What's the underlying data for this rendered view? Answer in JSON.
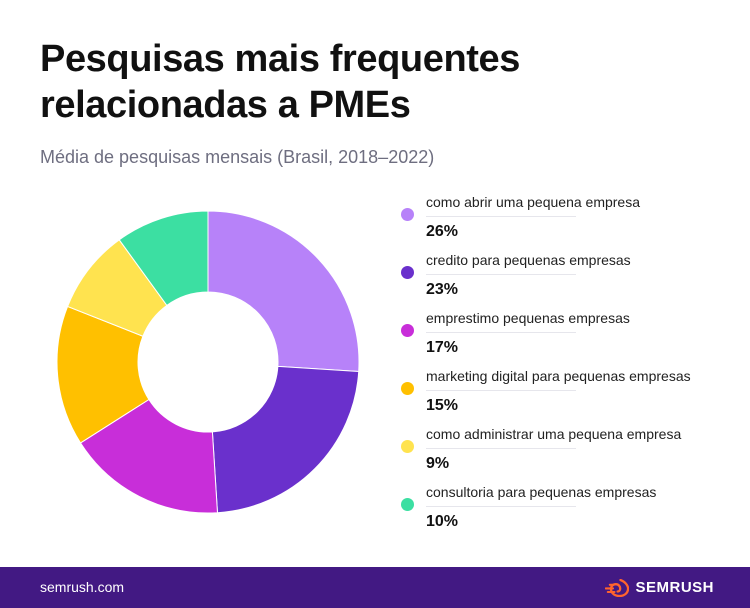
{
  "title_lines": [
    "Pesquisas mais frequentes",
    "relacionadas a PMEs"
  ],
  "subtitle": "Média de pesquisas mensais (Brasil, 2018–2022)",
  "chart_data": {
    "type": "pie",
    "donut": true,
    "title": "Pesquisas mais frequentes relacionadas a PMEs",
    "subtitle": "Média de pesquisas mensais (Brasil, 2018–2022)",
    "legend_position": "right",
    "categories": [
      "como abrir uma pequena empresa",
      "credito para pequenas empresas",
      "emprestimo pequenas empresas",
      "marketing digital para pequenas empresas",
      "como administrar uma pequena empresa",
      "consultoria para pequenas empresas"
    ],
    "values": [
      26,
      23,
      17,
      15,
      9,
      10
    ],
    "value_labels": [
      "26%",
      "23%",
      "17%",
      "15%",
      "9%",
      "10%"
    ],
    "colors": [
      "#b782f9",
      "#6a30cc",
      "#c82ed9",
      "#ffc000",
      "#ffe34f",
      "#3cdfa2"
    ]
  },
  "footer": {
    "url": "semrush.com",
    "brand": "SEMRUSH",
    "brand_icon": "semrush-fire-icon",
    "background": "#421983",
    "brand_icon_color": "#ff642d"
  }
}
